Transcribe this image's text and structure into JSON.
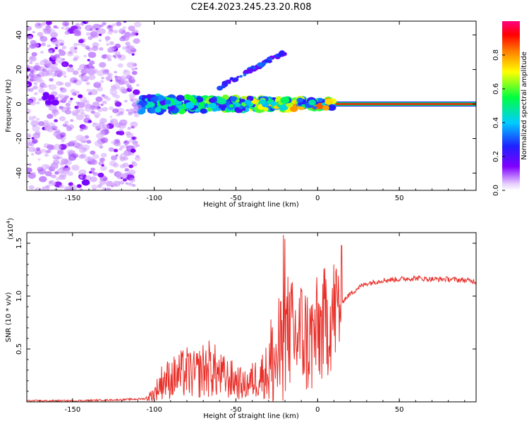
{
  "title": "C2E4.2023.245.23.20.R08",
  "chart_data": [
    {
      "type": "heatmap",
      "xlabel": "Height of straight line (km)",
      "ylabel": "Frequency (Hz)",
      "xlim": [
        -178,
        97
      ],
      "ylim": [
        -50,
        48
      ],
      "xticks": [
        -150,
        -100,
        -50,
        0,
        50
      ],
      "yticks": [
        -40,
        -20,
        0,
        20,
        40
      ],
      "colorbar": {
        "label": "Normalized spectral amplitude",
        "range": [
          0.0,
          1.0
        ],
        "ticks": [
          0.0,
          0.2,
          0.4,
          0.6,
          0.8
        ],
        "tick_labels": [
          "0.0",
          "0.2",
          "0.4",
          "0.6",
          "0.8"
        ]
      },
      "features": [
        {
          "name": "carrier line",
          "x": [
            10,
            97
          ],
          "freq": 0,
          "amplitude": 0.9
        },
        {
          "name": "broadened carrier",
          "x": [
            -110,
            10
          ],
          "freq_center": 0,
          "freq_spread": 5,
          "amplitude_range": [
            0.2,
            0.9
          ]
        },
        {
          "name": "upper sideband streak",
          "x": [
            -60,
            -20
          ],
          "freq": [
            10,
            30
          ],
          "amplitude": 0.25
        },
        {
          "name": "scattered noise",
          "x": [
            -178,
            -110
          ],
          "freq": [
            -50,
            48
          ],
          "amplitude": 0.1
        }
      ]
    },
    {
      "type": "line",
      "xlabel": "Height of straight line (km)",
      "ylabel": "SNR (10 * v/v)",
      "ymultiplier": "(x10",
      "ymultiplier_exp": "4",
      "ymultiplier_close": ")",
      "xlim": [
        -178,
        97
      ],
      "ylim": [
        0.0,
        1.6
      ],
      "xticks": [
        -150,
        -100,
        -50,
        0,
        50
      ],
      "yticks": [
        0.5,
        1.0,
        1.5
      ],
      "ytick_labels": [
        "0.5",
        "1.0",
        "1.5"
      ],
      "series": [
        {
          "name": "SNR",
          "color": "#e8302a",
          "x": [
            -178,
            -150,
            -120,
            -105,
            -100,
            -95,
            -90,
            -85,
            -80,
            -75,
            -70,
            -65,
            -60,
            -55,
            -50,
            -45,
            -40,
            -35,
            -30,
            -25,
            -20,
            -18,
            -15,
            -10,
            -5,
            0,
            5,
            10,
            15,
            20,
            25,
            30,
            40,
            50,
            60,
            70,
            80,
            90,
            97
          ],
          "values": [
            0.01,
            0.01,
            0.02,
            0.03,
            0.08,
            0.2,
            0.22,
            0.25,
            0.28,
            0.25,
            0.3,
            0.32,
            0.25,
            0.22,
            0.2,
            0.15,
            0.2,
            0.25,
            0.3,
            0.4,
            0.55,
            0.7,
            0.6,
            0.65,
            0.55,
            0.65,
            0.75,
            0.85,
            0.95,
            1.02,
            1.08,
            1.12,
            1.15,
            1.16,
            1.17,
            1.16,
            1.16,
            1.15,
            1.14
          ]
        }
      ]
    }
  ]
}
